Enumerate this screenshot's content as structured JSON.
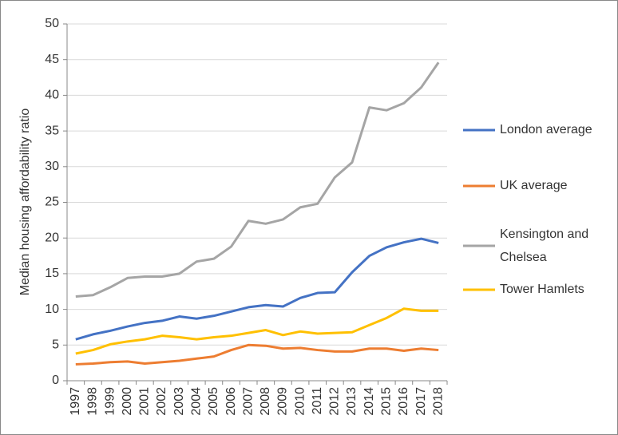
{
  "chart_data": {
    "type": "line",
    "y_label": "Median housing affordability ratio",
    "categories": [
      "1997",
      "1998",
      "1999",
      "2000",
      "2001",
      "2002",
      "2003",
      "2004",
      "2005",
      "2006",
      "2007",
      "2008",
      "2009",
      "2010",
      "2011",
      "2012",
      "2013",
      "2014",
      "2015",
      "2016",
      "2017",
      "2018"
    ],
    "series": [
      {
        "name": "London average",
        "color": "#4472c4",
        "values": [
          5.8,
          6.5,
          7.0,
          7.6,
          8.1,
          8.4,
          9.0,
          8.7,
          9.1,
          9.7,
          10.3,
          10.6,
          10.4,
          11.6,
          12.3,
          12.4,
          15.2,
          17.5,
          18.7,
          19.4,
          19.9,
          19.3
        ]
      },
      {
        "name": "UK average",
        "color": "#ed7d31",
        "values": [
          2.3,
          2.4,
          2.6,
          2.7,
          2.4,
          2.6,
          2.8,
          3.1,
          3.4,
          4.3,
          5.0,
          4.9,
          4.5,
          4.6,
          4.3,
          4.1,
          4.1,
          4.5,
          4.5,
          4.2,
          4.5,
          4.3
        ]
      },
      {
        "name": "Kensington and Chelsea",
        "color": "#a5a5a5",
        "values": [
          11.8,
          12.0,
          13.1,
          14.4,
          14.6,
          14.6,
          15.0,
          16.7,
          17.1,
          18.8,
          22.4,
          22.0,
          22.6,
          24.3,
          24.8,
          28.5,
          30.6,
          38.3,
          37.9,
          38.9,
          41.1,
          44.6
        ]
      },
      {
        "name": "Tower Hamlets",
        "color": "#ffc000",
        "values": [
          3.8,
          4.3,
          5.1,
          5.5,
          5.8,
          6.3,
          6.1,
          5.8,
          6.1,
          6.3,
          6.7,
          7.1,
          6.4,
          6.9,
          6.6,
          6.7,
          6.8,
          7.8,
          8.8,
          10.1,
          9.8,
          9.8
        ]
      }
    ],
    "ylim": [
      0,
      50
    ],
    "yticks": [
      0,
      5,
      10,
      15,
      20,
      25,
      30,
      35,
      40,
      45,
      50
    ],
    "grid": true,
    "legend": "right"
  }
}
